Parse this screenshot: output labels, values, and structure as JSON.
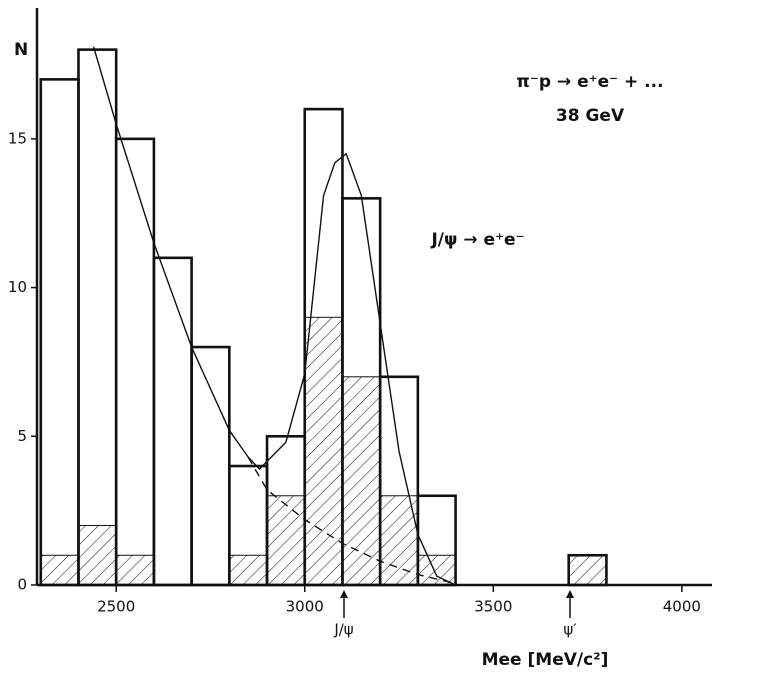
{
  "chart_data": {
    "type": "histogram",
    "y_label": "N",
    "x_label": "Mee [MeV/c²]",
    "annotations": {
      "reaction": "π⁻p → e⁺e⁻ + ...",
      "energy": "38 GeV",
      "decay": "J/ψ → e⁺e⁻",
      "jpsi": "J/ψ",
      "psiprime": "ψ′"
    },
    "bins": [
      2300,
      2400,
      2500,
      2600,
      2700,
      2800,
      2900,
      3000,
      3100,
      3200,
      3300,
      3400,
      3500,
      3600,
      3700,
      3800
    ],
    "series": [
      {
        "values": [
          17,
          18,
          15,
          11,
          8,
          4,
          5,
          16,
          13,
          7,
          3,
          0,
          0,
          0,
          1
        ],
        "color": "#111111",
        "fill": "none"
      },
      {
        "values": [
          1,
          2,
          1,
          0,
          0,
          1,
          3,
          9,
          7,
          3,
          1,
          0,
          0,
          0,
          1
        ],
        "color": "#111111",
        "fill": "hatch"
      }
    ],
    "curves": [
      {
        "x": [
          2440,
          2500,
          2600,
          2700,
          2800,
          2850,
          2880,
          2950,
          3000,
          3050,
          3080,
          3110,
          3150,
          3200,
          3250,
          3300,
          3350,
          3400
        ],
        "y": [
          18.1,
          15.5,
          11.5,
          8.0,
          5.2,
          4.3,
          3.9,
          4.8,
          7.1,
          13.1,
          14.2,
          14.5,
          13.1,
          8.8,
          4.5,
          1.7,
          0.3,
          0
        ],
        "color": "#111111",
        "style": "solid"
      },
      {
        "x": [
          2850,
          2900,
          3000,
          3100,
          3200,
          3300,
          3400
        ],
        "y": [
          4.3,
          3.2,
          2.2,
          1.4,
          0.8,
          0.35,
          0.05
        ],
        "color": "#111111",
        "style": "dashed"
      }
    ],
    "xlim": [
      2290,
      4080
    ],
    "ylim": [
      0,
      19.4
    ],
    "xticks": [
      2500,
      3000,
      3500,
      4000
    ],
    "yticks": [
      0,
      5,
      10,
      15
    ]
  }
}
